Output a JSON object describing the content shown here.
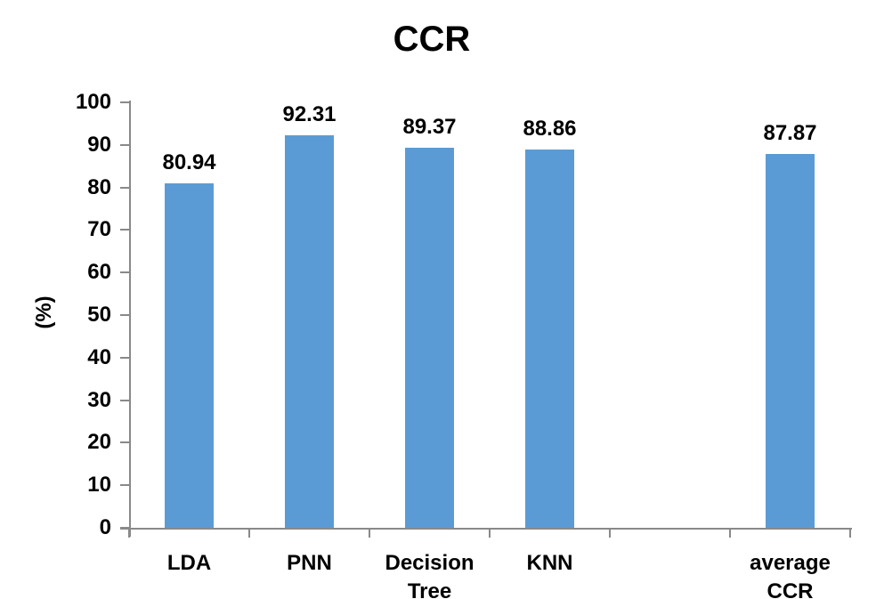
{
  "chart_data": {
    "type": "bar",
    "title": "CCR",
    "ylabel": "(%)",
    "categories": [
      "LDA",
      "PNN",
      "Decision\nTree",
      "KNN",
      "",
      "average\nCCR"
    ],
    "values": [
      80.94,
      92.31,
      89.37,
      88.86,
      null,
      87.87
    ],
    "labels": [
      "80.94",
      "92.31",
      "89.37",
      "88.86",
      "",
      "87.87"
    ],
    "yticks": [
      0,
      10,
      20,
      30,
      40,
      50,
      60,
      70,
      80,
      90,
      100
    ],
    "ylim": [
      0,
      100
    ],
    "grid": false,
    "legend": false,
    "bar_color": "#5B9BD5",
    "axis_color": "#898989",
    "text_color": "#000000"
  }
}
